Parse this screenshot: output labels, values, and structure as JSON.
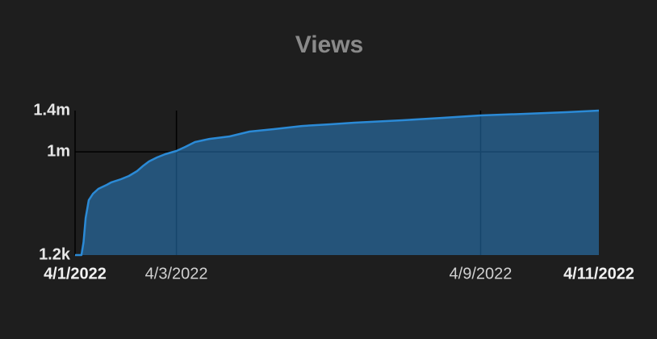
{
  "chart_data": {
    "type": "area",
    "title": "Views",
    "color": "#2b8ad6",
    "grid": true,
    "x": [
      "2022-04-01T00:00",
      "2022-04-01T03:00",
      "2022-04-01T04:00",
      "2022-04-01T05:00",
      "2022-04-01T06:30",
      "2022-04-01T08:30",
      "2022-04-01T11:00",
      "2022-04-01T15:00",
      "2022-04-01T17:00",
      "2022-04-01T21:45",
      "2022-04-02T01:30",
      "2022-04-02T05:20",
      "2022-04-02T08:25",
      "2022-04-02T11:00",
      "2022-04-02T14:50",
      "2022-04-02T18:40",
      "2022-04-03T00:00",
      "2022-04-03T04:10",
      "2022-04-03T08:45",
      "2022-04-03T15:35",
      "2022-04-04T01:10",
      "2022-04-04T10:40",
      "2022-04-04T22:05",
      "2022-04-05T11:25",
      "2022-04-06T00:45",
      "2022-04-06T12:10",
      "2022-04-07T11:00",
      "2022-04-08T06:05",
      "2022-04-09T00:00",
      "2022-04-09T21:20",
      "2022-04-10T16:30",
      "2022-04-11T08:00"
    ],
    "values": [
      1200,
      1200,
      126000,
      360000,
      533000,
      595000,
      642000,
      681000,
      704000,
      736000,
      767000,
      814000,
      868000,
      908000,
      947000,
      978000,
      1009000,
      1048000,
      1095000,
      1126000,
      1150000,
      1197000,
      1220000,
      1251000,
      1267000,
      1283000,
      1306000,
      1330000,
      1353000,
      1369000,
      1384000,
      1400000
    ],
    "xlim": [
      {
        "value": "2022-04-01T00:00",
        "label": "4/1/2022"
      },
      {
        "value": "2022-04-11T08:00",
        "label": "4/11/2022"
      }
    ],
    "xticks": [
      {
        "value": "2022-04-03T00:00",
        "label": "4/3/2022"
      },
      {
        "value": "2022-04-09T00:00",
        "label": "4/9/2022"
      }
    ],
    "ylim": [
      1200,
      1400000
    ],
    "yticks": [
      {
        "value": 1200,
        "label": "1.2k"
      },
      {
        "value": 1000000,
        "label": "1m"
      },
      {
        "value": 1400000,
        "label": "1.4m"
      }
    ]
  }
}
